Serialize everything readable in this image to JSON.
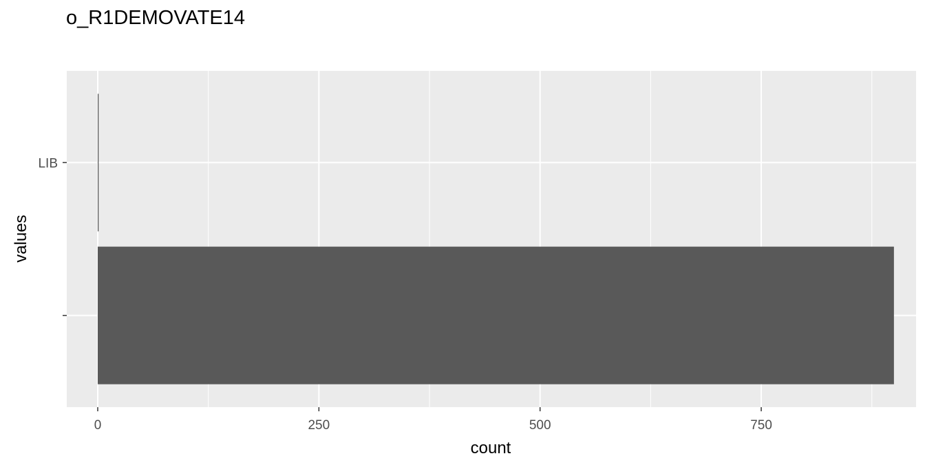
{
  "chart_data": {
    "type": "bar",
    "orientation": "horizontal",
    "title": "o_R1DEMOVATE14",
    "xlabel": "count",
    "ylabel": "values",
    "categories": [
      "LIB",
      ""
    ],
    "values": [
      1,
      900
    ],
    "xlim": [
      -35,
      925
    ],
    "xticks": [
      0,
      250,
      500,
      750
    ],
    "xtick_labels": [
      "0",
      "250",
      "500",
      "750"
    ],
    "grid": true,
    "legend": "none",
    "colors": {
      "panel": "#ebebeb",
      "grid": "#ffffff",
      "bar": "#595959",
      "text": "#4d4d4d",
      "title": "#000000"
    }
  }
}
